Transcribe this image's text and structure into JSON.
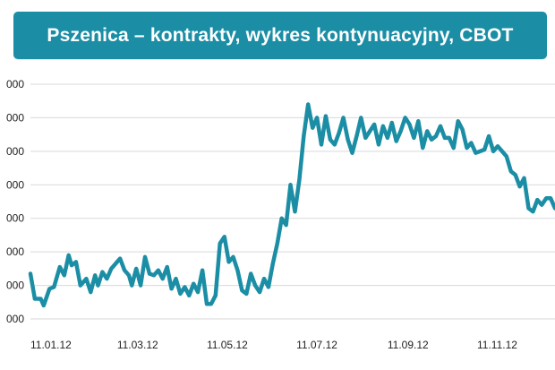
{
  "title": "Pszenica – kontrakty, wykres kontynuacyjny, CBOT",
  "colors": {
    "title_background": "#1b8ea5",
    "line": "#1b8ea5",
    "grid": "#d9d9d9"
  },
  "chart_data": {
    "type": "line",
    "title": "Pszenica – kontrakty, wykres kontynuacyjny, CBOT",
    "xlabel": "",
    "ylabel": "",
    "grid": true,
    "legend": "none",
    "y_tick_labels": [
      "000",
      "000",
      "000",
      "000",
      "000",
      "000",
      "000",
      "000"
    ],
    "y_ticks": [
      0,
      1,
      2,
      3,
      4,
      5,
      6,
      7
    ],
    "ylim": [
      0,
      7
    ],
    "x_tick_labels": [
      "11.01.12",
      "11.03.12",
      "11.05.12",
      "11.07.12",
      "11.09.12",
      "11.11.12"
    ],
    "x_tick_positions": [
      0,
      59,
      120,
      181,
      243,
      304
    ],
    "xlim": [
      0,
      357
    ],
    "series": [
      {
        "x": [
          0,
          3,
          7,
          9,
          13,
          16,
          20,
          23,
          26,
          28,
          31,
          34,
          38,
          41,
          44,
          46,
          49,
          52,
          55,
          59,
          61,
          64,
          67,
          69,
          72,
          75,
          78,
          81,
          84,
          87,
          90,
          93,
          96,
          99,
          102,
          105,
          108,
          111,
          114,
          117,
          120,
          123,
          126,
          129,
          132,
          135,
          138,
          141,
          144,
          147,
          150,
          153,
          156,
          159,
          162,
          165,
          168,
          171,
          174,
          177,
          180,
          183,
          186,
          189,
          192,
          195,
          198,
          201,
          204,
          207,
          210,
          213,
          216,
          219,
          222,
          225,
          228,
          231,
          234,
          237,
          240,
          243,
          246,
          249,
          252,
          255,
          258,
          261,
          264,
          267,
          270,
          273,
          276,
          279,
          282,
          285,
          288,
          291,
          294,
          297,
          300,
          303,
          306,
          309,
          312,
          315,
          318,
          321,
          324,
          327,
          330,
          333,
          336,
          339,
          342,
          345,
          348,
          351,
          354,
          357
        ],
        "y": [
          1.35,
          0.6,
          0.6,
          0.4,
          0.9,
          0.95,
          1.55,
          1.3,
          1.9,
          1.6,
          1.7,
          1.0,
          1.2,
          0.8,
          1.3,
          1.0,
          1.4,
          1.2,
          1.5,
          1.7,
          1.8,
          1.45,
          1.3,
          1.0,
          1.5,
          1.0,
          1.85,
          1.35,
          1.3,
          1.45,
          1.2,
          1.55,
          0.9,
          1.2,
          0.75,
          0.95,
          0.7,
          1.05,
          0.8,
          1.45,
          0.45,
          0.45,
          0.7,
          2.25,
          2.45,
          1.7,
          1.85,
          1.45,
          0.85,
          0.75,
          1.35,
          1.0,
          0.8,
          1.2,
          0.95,
          1.65,
          2.25,
          3.0,
          2.8,
          4.0,
          3.2,
          4.15,
          5.45,
          6.4,
          5.7,
          6.0,
          5.2,
          6.05,
          5.35,
          5.2,
          5.55,
          6.0,
          5.35,
          4.95,
          5.45,
          6.0,
          5.4,
          5.6,
          5.8,
          5.2,
          5.75,
          5.4,
          5.85,
          5.3,
          5.6,
          6.0,
          5.8,
          5.4,
          5.9,
          5.1,
          5.6,
          5.35,
          5.45,
          5.75,
          5.4,
          5.4,
          5.1,
          5.9,
          5.65,
          5.1,
          5.25,
          4.95,
          5.0,
          5.05,
          5.45,
          5.0,
          5.15,
          5.0,
          4.85,
          4.4,
          4.3,
          3.95,
          4.2,
          3.3,
          3.2,
          3.55,
          3.4,
          3.6,
          3.6,
          3.3
        ]
      }
    ]
  }
}
